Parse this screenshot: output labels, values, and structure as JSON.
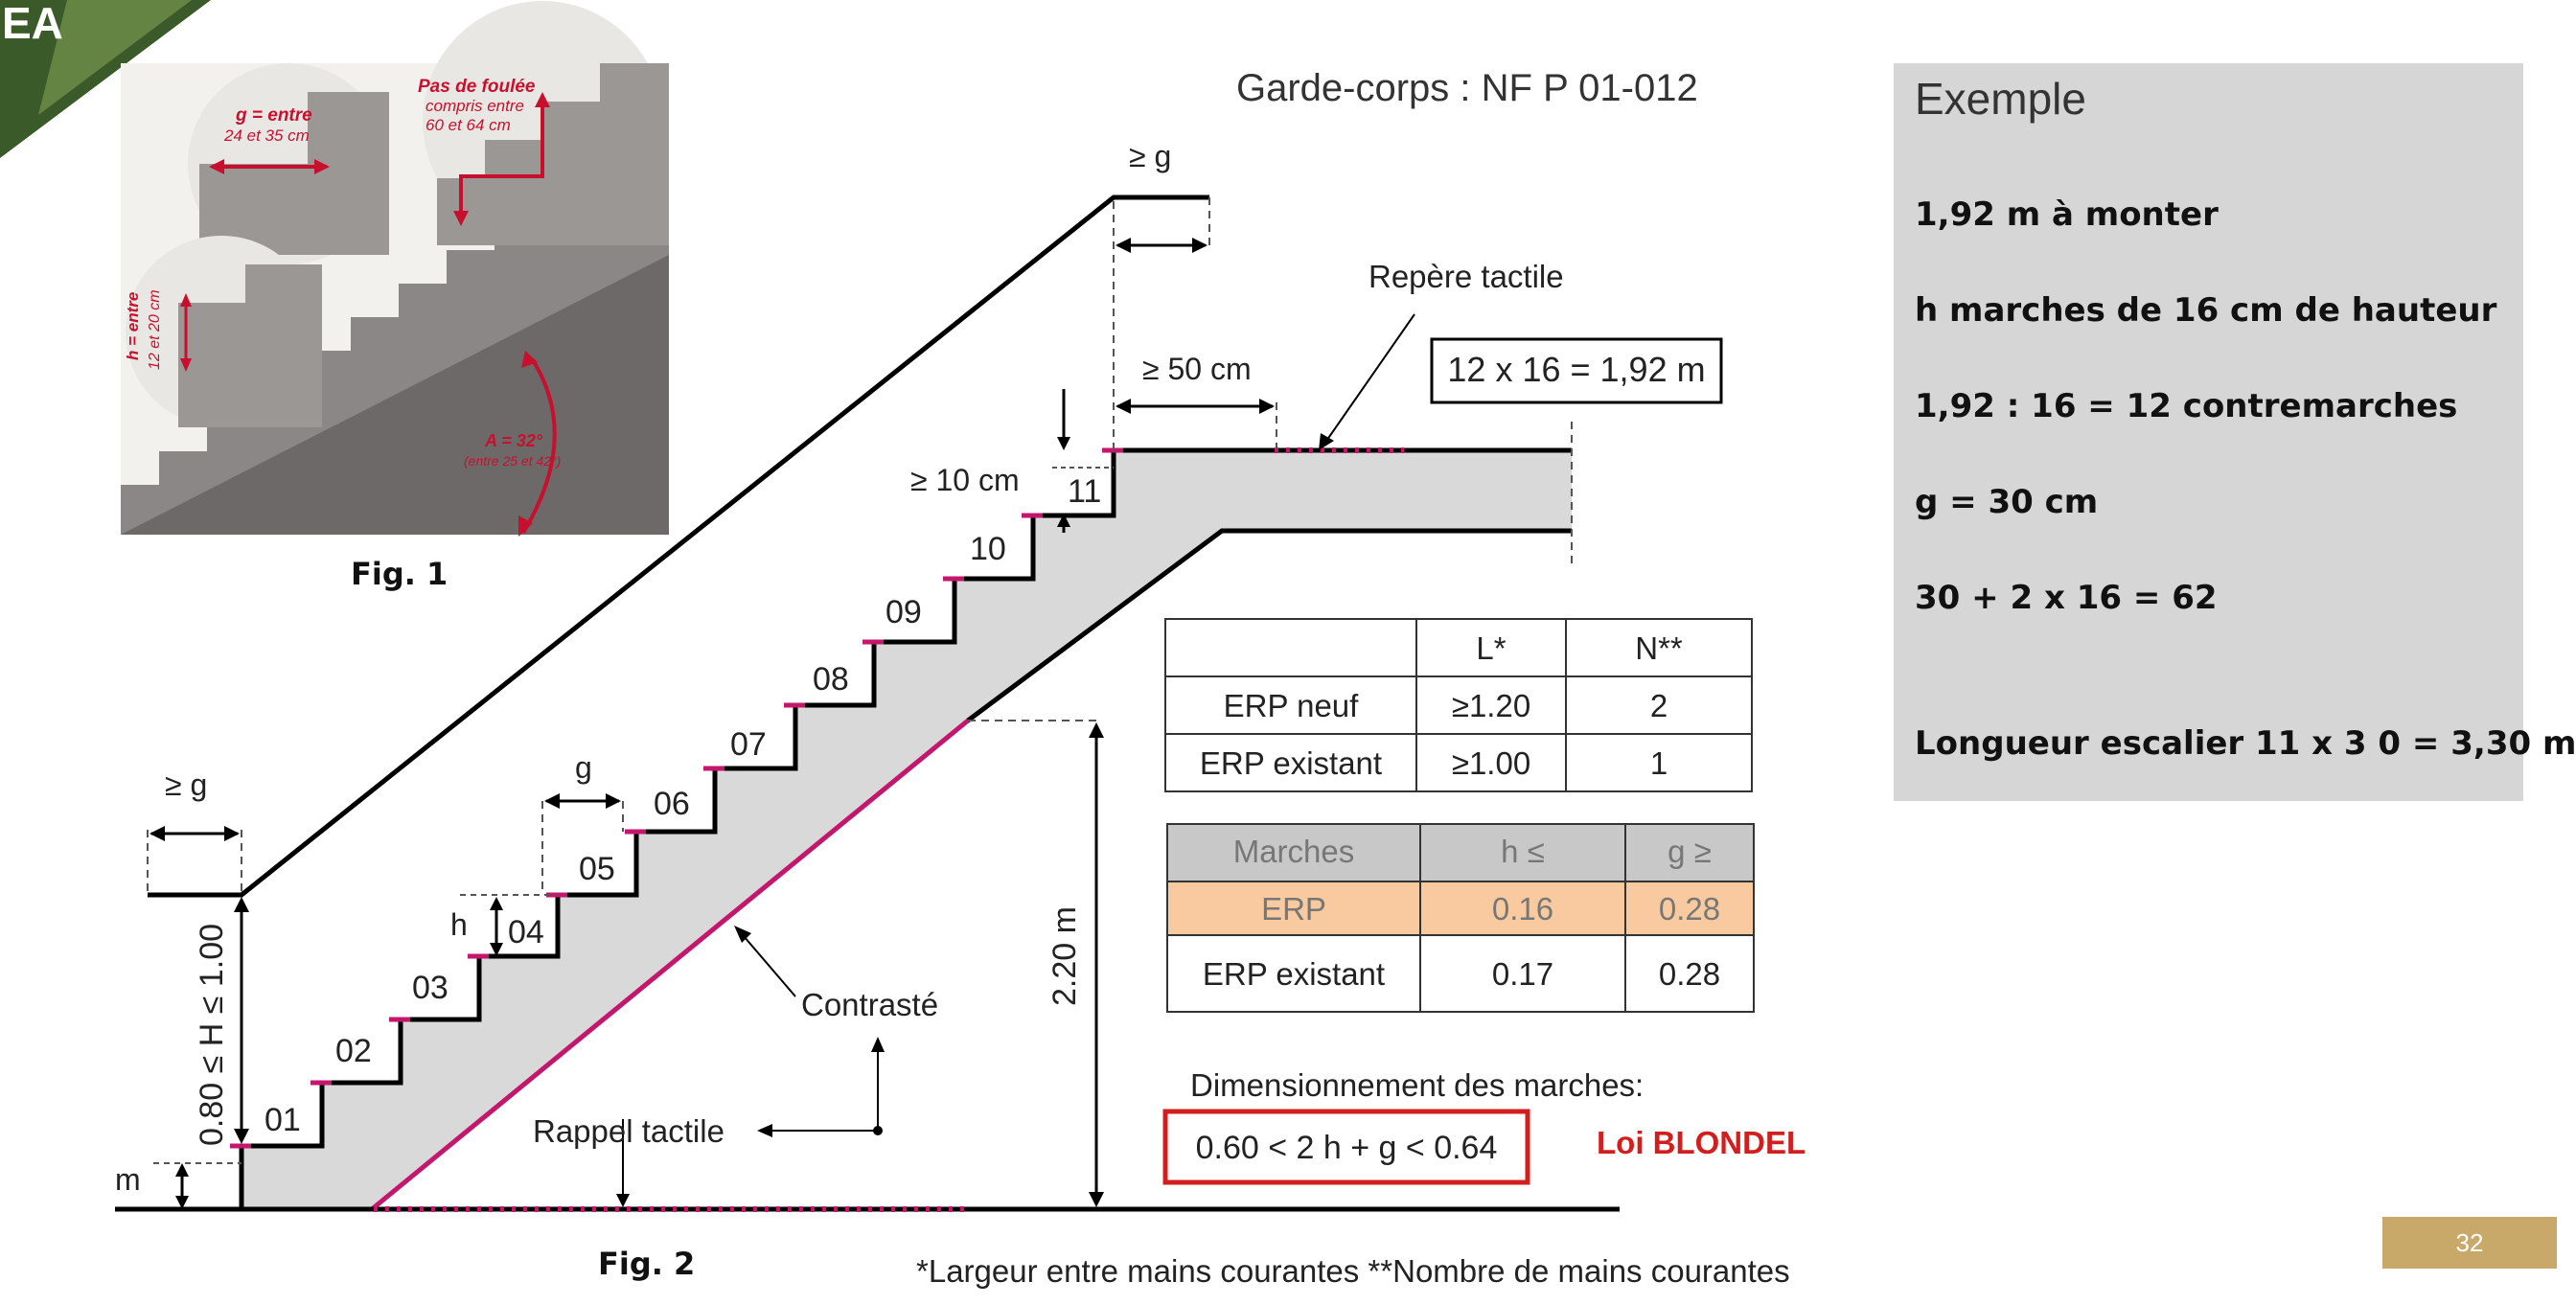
{
  "header": {
    "garde_corps": "Garde-corps : NF P 01-012"
  },
  "fig1": {
    "caption": "Fig. 1",
    "g_label_1": "g = entre",
    "g_label_2": "24 et 35 cm",
    "pas_label_1": "Pas de foulée",
    "pas_label_2": "compris entre",
    "pas_label_3": "60 et 64 cm",
    "h_label_1": "h = entre",
    "h_label_2": "12 et 20 cm",
    "a_label_1": "A = 32°",
    "a_label_2": "(entre 25 et 42°)"
  },
  "fig2": {
    "caption": "Fig. 2",
    "steps": [
      "01",
      "02",
      "03",
      "04",
      "05",
      "06",
      "07",
      "08",
      "09",
      "10",
      "11"
    ],
    "ge_g_top": "≥ g",
    "ge_g_left": "≥ g",
    "g": "g",
    "h": "h",
    "m": "m",
    "ge_50": "≥ 50 cm",
    "ge_10": "≥ 10 cm",
    "height_range": "0.80 ≤ H ≤ 1.00",
    "height_220": "2.20 m",
    "repere": "Repère tactile",
    "contraste": "Contrasté",
    "rappel": "Rappel tactile",
    "calc_box": "12 x 16 = 1,92 m",
    "dimension_label": "Dimensionnement des marches:",
    "blondel_formula": "0.60 < 2 h + g < 0.64",
    "blondel_law": "Loi BLONDEL"
  },
  "table_ln": {
    "headers": [
      "",
      "L*",
      "N**"
    ],
    "rows": [
      [
        "ERP neuf",
        "≥1.20",
        "2"
      ],
      [
        "ERP existant",
        "≥1.00",
        "1"
      ]
    ]
  },
  "table_marches": {
    "headers": [
      "Marches",
      "h ≤",
      "g ≥"
    ],
    "rows": [
      [
        "ERP",
        "0.16",
        "0.28"
      ],
      [
        "ERP existant",
        "0.17",
        "0.28"
      ]
    ]
  },
  "footnote": "*Largeur entre mains courantes **Nombre de mains courantes",
  "example": {
    "title": "Exemple",
    "lines": [
      "1,92 m à monter",
      "h marches de 16 cm de hauteur",
      "1,92 : 16 = 12 contremarches",
      "g = 30 cm",
      "30 + 2 x 16  = 62",
      "Longueur escalier 11 x 3 0 = 3,30 m"
    ]
  },
  "page_number": "32",
  "logo_text": "EA",
  "colors": {
    "accent_magenta": "#c4166c",
    "highlight_orange": "#f9caa0",
    "header_gray": "#c8c8c8",
    "fill_gray": "#d9d9d9",
    "blondel_red": "#cc1f1f",
    "page_gold": "#c9a96a"
  }
}
